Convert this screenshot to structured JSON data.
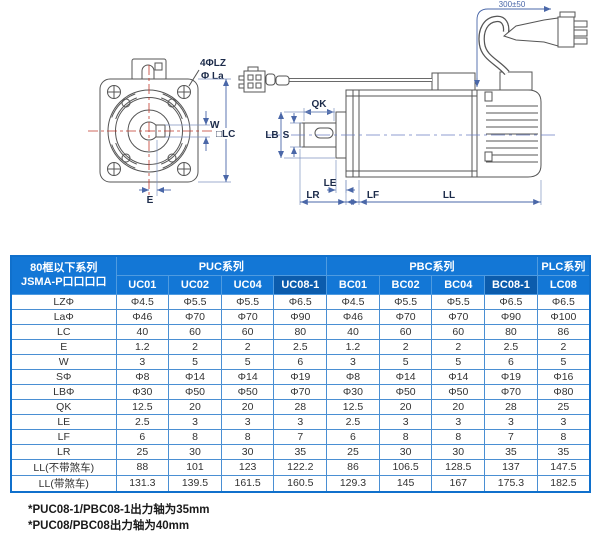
{
  "diagram": {
    "front": {
      "holes": "4ΦLZ",
      "boss": "Φ La",
      "w": "W",
      "lc": "□LC",
      "e": "E"
    },
    "side": {
      "cable": "300±50",
      "qk": "QK",
      "s": "S",
      "lb": "LB",
      "le": "LE",
      "lr": "LR",
      "lf": "LF",
      "ll": "LL"
    }
  },
  "table": {
    "corner_header": {
      "line1": "80框以下系列",
      "line2": "JSMA-P口口口口"
    },
    "groups": [
      {
        "label": "PUC系列",
        "span": 4
      },
      {
        "label": "PBC系列",
        "span": 4
      },
      {
        "label": "PLC系列",
        "span": 1
      }
    ],
    "columns": [
      "UC01",
      "UC02",
      "UC04",
      "UC08-1",
      "BC01",
      "BC02",
      "BC04",
      "BC08-1",
      "LC08"
    ],
    "highlight_columns": [
      3,
      7
    ],
    "rows": [
      {
        "label": "LZΦ",
        "values": [
          "Φ4.5",
          "Φ5.5",
          "Φ5.5",
          "Φ6.5",
          "Φ4.5",
          "Φ5.5",
          "Φ5.5",
          "Φ6.5",
          "Φ6.5"
        ]
      },
      {
        "label": "LaΦ",
        "values": [
          "Φ46",
          "Φ70",
          "Φ70",
          "Φ90",
          "Φ46",
          "Φ70",
          "Φ70",
          "Φ90",
          "Φ100"
        ]
      },
      {
        "label": "LC",
        "values": [
          "40",
          "60",
          "60",
          "80",
          "40",
          "60",
          "60",
          "80",
          "86"
        ]
      },
      {
        "label": "E",
        "values": [
          "1.2",
          "2",
          "2",
          "2.5",
          "1.2",
          "2",
          "2",
          "2.5",
          "2"
        ]
      },
      {
        "label": "W",
        "values": [
          "3",
          "5",
          "5",
          "6",
          "3",
          "5",
          "5",
          "6",
          "5"
        ]
      },
      {
        "label": "SΦ",
        "values": [
          "Φ8",
          "Φ14",
          "Φ14",
          "Φ19",
          "Φ8",
          "Φ14",
          "Φ14",
          "Φ19",
          "Φ16"
        ]
      },
      {
        "label": "LBΦ",
        "values": [
          "Φ30",
          "Φ50",
          "Φ50",
          "Φ70",
          "Φ30",
          "Φ50",
          "Φ50",
          "Φ70",
          "Φ80"
        ]
      },
      {
        "label": "QK",
        "values": [
          "12.5",
          "20",
          "20",
          "28",
          "12.5",
          "20",
          "20",
          "28",
          "25"
        ]
      },
      {
        "label": "LE",
        "values": [
          "2.5",
          "3",
          "3",
          "3",
          "2.5",
          "3",
          "3",
          "3",
          "3"
        ]
      },
      {
        "label": "LF",
        "values": [
          "6",
          "8",
          "8",
          "7",
          "6",
          "8",
          "8",
          "7",
          "8"
        ]
      },
      {
        "label": "LR",
        "values": [
          "25",
          "30",
          "30",
          "35",
          "25",
          "30",
          "30",
          "35",
          "35"
        ]
      },
      {
        "label": "LL(不带煞车)",
        "values": [
          "88",
          "101",
          "123",
          "122.2",
          "86",
          "106.5",
          "128.5",
          "137",
          "147.5"
        ]
      },
      {
        "label": "LL(带煞车)",
        "values": [
          "131.3",
          "139.5",
          "161.5",
          "160.5",
          "129.3",
          "145",
          "167",
          "175.3",
          "182.5"
        ]
      }
    ]
  },
  "footnotes": [
    "*PUC08-1/PBC08-1出力轴为35mm",
    "*PUC08/PBC08出力轴为40mm"
  ],
  "colors": {
    "header_blue": "#1377d6",
    "header_blue_dark": "#0b5cad",
    "grid_blue": "#4a8fd3",
    "outer_blue": "#1070cc",
    "dim_blue": "#4a67a8",
    "centerline_red": "#c0392b",
    "drawing_line": "#555555"
  }
}
